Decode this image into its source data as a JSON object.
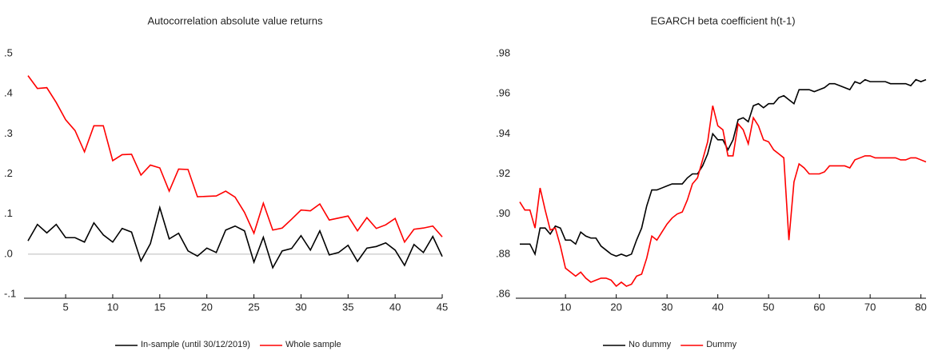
{
  "chart_data": [
    {
      "type": "line",
      "title": "Autocorrelation absolute value returns",
      "x": [
        1,
        2,
        3,
        4,
        5,
        6,
        7,
        8,
        9,
        10,
        11,
        12,
        13,
        14,
        15,
        16,
        17,
        18,
        19,
        20,
        21,
        22,
        23,
        24,
        25,
        26,
        27,
        28,
        29,
        30,
        31,
        32,
        33,
        34,
        35,
        36,
        37,
        38,
        39,
        40,
        41,
        42,
        43,
        44,
        45
      ],
      "series": [
        {
          "name": "In-sample (until 30/12/2019)",
          "color": "#000000",
          "values": [
            0.033,
            0.074,
            0.053,
            0.074,
            0.041,
            0.041,
            0.03,
            0.078,
            0.048,
            0.03,
            0.064,
            0.055,
            -0.017,
            0.026,
            0.116,
            0.038,
            0.052,
            0.008,
            -0.005,
            0.015,
            0.004,
            0.06,
            0.07,
            0.058,
            -0.02,
            0.042,
            -0.034,
            0.008,
            0.014,
            0.046,
            0.01,
            0.058,
            -0.002,
            0.004,
            0.022,
            -0.018,
            0.015,
            0.019,
            0.028,
            0.01,
            -0.028,
            0.024,
            0.004,
            0.044,
            -0.006
          ]
        },
        {
          "name": "Whole sample",
          "color": "#ff0000",
          "values": [
            0.445,
            0.413,
            0.415,
            0.378,
            0.335,
            0.308,
            0.255,
            0.32,
            0.32,
            0.233,
            0.248,
            0.249,
            0.197,
            0.222,
            0.215,
            0.157,
            0.212,
            0.211,
            0.143,
            0.144,
            0.145,
            0.157,
            0.142,
            0.104,
            0.052,
            0.127,
            0.06,
            0.065,
            0.087,
            0.11,
            0.108,
            0.125,
            0.085,
            0.09,
            0.095,
            0.058,
            0.091,
            0.064,
            0.073,
            0.089,
            0.03,
            0.062,
            0.065,
            0.07,
            0.043
          ]
        }
      ],
      "xlim": [
        1,
        45
      ],
      "xticks": [
        5,
        10,
        15,
        20,
        25,
        30,
        35,
        40,
        45
      ],
      "ylim": [
        -0.11,
        0.51
      ],
      "yticks": [
        {
          "value": 0.5,
          "label": ".5"
        },
        {
          "value": 0.4,
          "label": ".4"
        },
        {
          "value": 0.3,
          "label": ".3"
        },
        {
          "value": 0.2,
          "label": ".2"
        },
        {
          "value": 0.1,
          "label": ".1"
        },
        {
          "value": 0,
          "label": ".0"
        },
        {
          "value": -0.1,
          "label": "-.1"
        }
      ],
      "zero_line": true,
      "grid": false
    },
    {
      "type": "line",
      "title": "EGARCH beta coefficient h(t-1)",
      "x": [
        1,
        2,
        3,
        4,
        5,
        6,
        7,
        8,
        9,
        10,
        11,
        12,
        13,
        14,
        15,
        16,
        17,
        18,
        19,
        20,
        21,
        22,
        23,
        24,
        25,
        26,
        27,
        28,
        29,
        30,
        31,
        32,
        33,
        34,
        35,
        36,
        37,
        38,
        39,
        40,
        41,
        42,
        43,
        44,
        45,
        46,
        47,
        48,
        49,
        50,
        51,
        52,
        53,
        54,
        55,
        56,
        57,
        58,
        59,
        60,
        61,
        62,
        63,
        64,
        65,
        66,
        67,
        68,
        69,
        70,
        71,
        72,
        73,
        74,
        75,
        76,
        77,
        78,
        79,
        80,
        81
      ],
      "series": [
        {
          "name": "No dummy",
          "color": "#000000",
          "values": [
            0.885,
            0.885,
            0.885,
            0.88,
            0.893,
            0.893,
            0.89,
            0.894,
            0.893,
            0.887,
            0.887,
            0.885,
            0.891,
            0.889,
            0.888,
            0.888,
            0.884,
            0.882,
            0.88,
            0.879,
            0.88,
            0.879,
            0.88,
            0.887,
            0.893,
            0.904,
            0.912,
            0.912,
            0.913,
            0.914,
            0.915,
            0.915,
            0.915,
            0.918,
            0.92,
            0.92,
            0.924,
            0.93,
            0.94,
            0.937,
            0.937,
            0.932,
            0.937,
            0.947,
            0.948,
            0.946,
            0.954,
            0.955,
            0.953,
            0.955,
            0.955,
            0.958,
            0.959,
            0.957,
            0.955,
            0.962,
            0.962,
            0.962,
            0.961,
            0.962,
            0.963,
            0.965,
            0.965,
            0.964,
            0.963,
            0.962,
            0.966,
            0.965,
            0.967,
            0.966,
            0.966,
            0.966,
            0.966,
            0.965,
            0.965,
            0.965,
            0.965,
            0.964,
            0.967,
            0.966,
            0.967
          ]
        },
        {
          "name": "Dummy",
          "color": "#ff0000",
          "values": [
            0.906,
            0.902,
            0.902,
            0.893,
            0.913,
            0.902,
            0.892,
            0.893,
            0.884,
            0.873,
            0.871,
            0.869,
            0.871,
            0.868,
            0.866,
            0.867,
            0.868,
            0.868,
            0.867,
            0.864,
            0.866,
            0.864,
            0.865,
            0.869,
            0.87,
            0.878,
            0.889,
            0.887,
            0.891,
            0.895,
            0.898,
            0.9,
            0.901,
            0.907,
            0.915,
            0.918,
            0.927,
            0.936,
            0.954,
            0.944,
            0.942,
            0.929,
            0.929,
            0.945,
            0.942,
            0.935,
            0.948,
            0.944,
            0.937,
            0.936,
            0.932,
            0.93,
            0.928,
            0.887,
            0.916,
            0.925,
            0.923,
            0.92,
            0.92,
            0.92,
            0.921,
            0.924,
            0.924,
            0.924,
            0.924,
            0.923,
            0.927,
            0.928,
            0.929,
            0.929,
            0.928,
            0.928,
            0.928,
            0.928,
            0.928,
            0.927,
            0.927,
            0.928,
            0.928,
            0.927,
            0.926
          ]
        }
      ],
      "xlim": [
        1,
        81
      ],
      "xticks": [
        10,
        20,
        30,
        40,
        50,
        60,
        70,
        80
      ],
      "ylim": [
        0.858,
        0.982
      ],
      "yticks": [
        {
          "value": 0.98,
          "label": ".98"
        },
        {
          "value": 0.96,
          "label": ".96"
        },
        {
          "value": 0.94,
          "label": ".94"
        },
        {
          "value": 0.92,
          "label": ".92"
        },
        {
          "value": 0.9,
          "label": ".90"
        },
        {
          "value": 0.88,
          "label": ".88"
        },
        {
          "value": 0.86,
          "label": ".86"
        }
      ],
      "zero_line": false,
      "grid": false
    }
  ]
}
